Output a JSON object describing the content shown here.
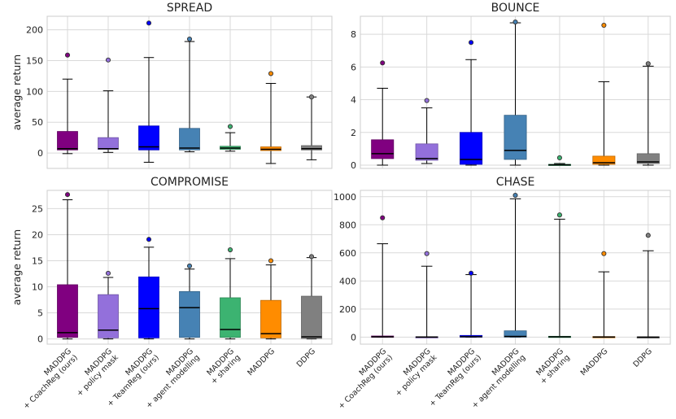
{
  "chart_data": {
    "type": "boxplot",
    "categories": [
      {
        "line1": "MADDPG",
        "line2": "+ CoachReg (ours)"
      },
      {
        "line1": "MADDPG",
        "line2": "+ policy mask"
      },
      {
        "line1": "MADDPG",
        "line2": "+ TeamReg (ours)"
      },
      {
        "line1": "MADDPG",
        "line2": "+ agent modelling"
      },
      {
        "line1": "MADDPG",
        "line2": "+ sharing"
      },
      {
        "line1": "MADDPG",
        "line2": ""
      },
      {
        "line1": "DDPG",
        "line2": ""
      }
    ],
    "colors": [
      "#800080",
      "#9370db",
      "#0000ff",
      "#4682b4",
      "#3cb371",
      "#ff8c00",
      "#808080"
    ],
    "ylabel": "average return",
    "panels": [
      {
        "title": "SPREAD",
        "ylim": [
          -25,
          222
        ],
        "yticks": [
          0,
          50,
          100,
          150,
          200
        ],
        "boxes": [
          {
            "whislo": -1,
            "q1": 5,
            "med": 7,
            "q3": 35,
            "whishi": 120,
            "fliers": [
              159
            ]
          },
          {
            "whislo": 1,
            "q1": 6,
            "med": 7,
            "q3": 25,
            "whishi": 101,
            "fliers": [
              151
            ]
          },
          {
            "whislo": -15,
            "q1": 5,
            "med": 10,
            "q3": 44,
            "whishi": 155,
            "fliers": [
              211
            ]
          },
          {
            "whislo": 2,
            "q1": 5,
            "med": 8,
            "q3": 40,
            "whishi": 181,
            "fliers": [
              185
            ]
          },
          {
            "whislo": 3,
            "q1": 6,
            "med": 8,
            "q3": 11,
            "whishi": 33,
            "fliers": [
              43
            ]
          },
          {
            "whislo": -17,
            "q1": 4,
            "med": 6,
            "q3": 10,
            "whishi": 113,
            "fliers": [
              129
            ]
          },
          {
            "whislo": -11,
            "q1": 5,
            "med": 7,
            "q3": 12,
            "whishi": 91,
            "fliers": [
              91
            ]
          }
        ]
      },
      {
        "title": "BOUNCE",
        "ylim": [
          -0.2,
          9.1
        ],
        "yticks": [
          0,
          2,
          4,
          6,
          8
        ],
        "boxes": [
          {
            "whislo": 0.0,
            "q1": 0.4,
            "med": 0.7,
            "q3": 1.55,
            "whishi": 4.7,
            "fliers": [
              6.25
            ]
          },
          {
            "whislo": 0.1,
            "q1": 0.3,
            "med": 0.4,
            "q3": 1.3,
            "whishi": 3.5,
            "fliers": [
              3.95
            ]
          },
          {
            "whislo": 0.0,
            "q1": 0.05,
            "med": 0.35,
            "q3": 2.0,
            "whishi": 6.45,
            "fliers": [
              7.5
            ]
          },
          {
            "whislo": 0.0,
            "q1": 0.35,
            "med": 0.9,
            "q3": 3.05,
            "whishi": 8.7,
            "fliers": [
              8.75
            ]
          },
          {
            "whislo": 0.0,
            "q1": 0.0,
            "med": 0.02,
            "q3": 0.05,
            "whishi": 0.1,
            "fliers": [
              0.45
            ]
          },
          {
            "whislo": 0.0,
            "q1": 0.05,
            "med": 0.15,
            "q3": 0.55,
            "whishi": 5.1,
            "fliers": [
              8.55
            ]
          },
          {
            "whislo": 0.0,
            "q1": 0.1,
            "med": 0.2,
            "q3": 0.7,
            "whishi": 6.05,
            "fliers": [
              6.2
            ]
          }
        ]
      },
      {
        "title": "COMPROMISE",
        "ylim": [
          -1.0,
          28.5
        ],
        "yticks": [
          0,
          5,
          10,
          15,
          20,
          25
        ],
        "boxes": [
          {
            "whislo": 0.0,
            "q1": 0.3,
            "med": 1.2,
            "q3": 10.4,
            "whishi": 26.7,
            "fliers": [
              27.7
            ]
          },
          {
            "whislo": 0.0,
            "q1": 0.2,
            "med": 1.7,
            "q3": 8.5,
            "whishi": 11.8,
            "fliers": [
              12.6
            ]
          },
          {
            "whislo": 0.0,
            "q1": 0.2,
            "med": 5.8,
            "q3": 11.9,
            "whishi": 17.6,
            "fliers": [
              19.1
            ]
          },
          {
            "whislo": 0.0,
            "q1": 0.3,
            "med": 6.0,
            "q3": 9.1,
            "whishi": 13.4,
            "fliers": [
              14.0
            ]
          },
          {
            "whislo": 0.0,
            "q1": 0.3,
            "med": 1.8,
            "q3": 7.9,
            "whishi": 15.4,
            "fliers": [
              17.1
            ]
          },
          {
            "whislo": 0.0,
            "q1": 0.2,
            "med": 1.0,
            "q3": 7.4,
            "whishi": 14.2,
            "fliers": [
              15.0
            ]
          },
          {
            "whislo": 0.0,
            "q1": 0.1,
            "med": 0.4,
            "q3": 8.2,
            "whishi": 15.6,
            "fliers": [
              15.8
            ]
          }
        ]
      },
      {
        "title": "CHASE",
        "ylim": [
          -50,
          1045
        ],
        "yticks": [
          0,
          200,
          400,
          600,
          800,
          1000
        ],
        "boxes": [
          {
            "whislo": 0,
            "q1": 0,
            "med": 2,
            "q3": 8,
            "whishi": 665,
            "fliers": [
              850
            ]
          },
          {
            "whislo": 0,
            "q1": 0,
            "med": 1,
            "q3": 3,
            "whishi": 505,
            "fliers": [
              595
            ]
          },
          {
            "whislo": 0,
            "q1": 0,
            "med": 3,
            "q3": 12,
            "whishi": 445,
            "fliers": [
              455
            ]
          },
          {
            "whislo": 0,
            "q1": 0,
            "med": 5,
            "q3": 45,
            "whishi": 985,
            "fliers": [
              1010
            ]
          },
          {
            "whislo": 0,
            "q1": 0,
            "med": 2,
            "q3": 6,
            "whishi": 840,
            "fliers": [
              870
            ]
          },
          {
            "whislo": 0,
            "q1": 0,
            "med": 1,
            "q3": 4,
            "whishi": 465,
            "fliers": [
              595
            ]
          },
          {
            "whislo": 0,
            "q1": 0,
            "med": 0,
            "q3": 2,
            "whishi": 615,
            "fliers": [
              725
            ]
          }
        ]
      }
    ]
  }
}
